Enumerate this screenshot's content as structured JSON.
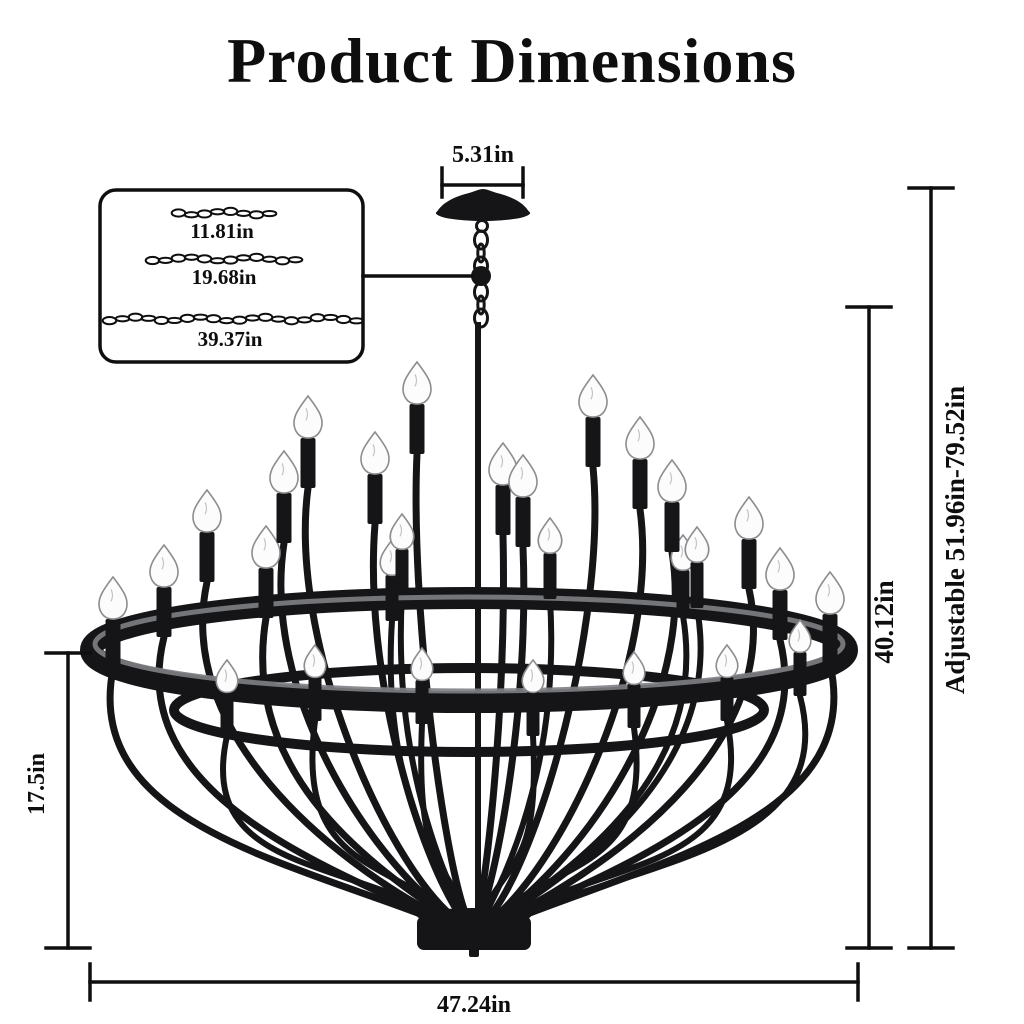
{
  "title": "Product Dimensions",
  "diagram": {
    "product": "28-light wagon-wheel candle chandelier",
    "canopy_width_label": "5.31in",
    "chain_lengths": [
      {
        "label": "11.81in"
      },
      {
        "label": "19.68in"
      },
      {
        "label": "39.37in"
      }
    ],
    "body_height_label": "40.12in",
    "adjustable_height_label": "Adjustable 51.96in-79.52in",
    "basket_height_label": "17.5in",
    "width_label": "47.24in"
  },
  "colors": {
    "ink": "#0e0e0f",
    "metal": "#151518",
    "ring_highlight": "#7e7f84",
    "bulb": "#fcfcfc",
    "bulb_outline": "#8d8d90",
    "background": "#ffffff"
  }
}
